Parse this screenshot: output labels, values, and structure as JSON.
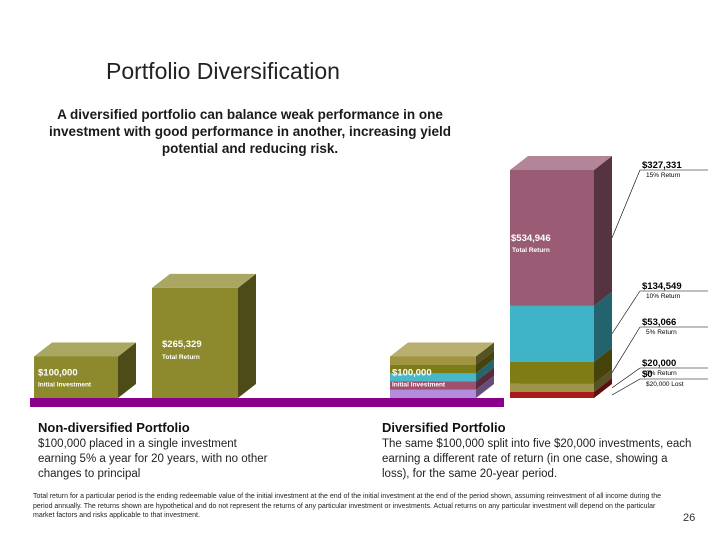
{
  "slide": {
    "title": "Portfolio Diversification",
    "subtitle": "A diversified portfolio can balance weak performance in one investment with good performance in another, increasing yield potential and reducing risk.",
    "page_number": "26",
    "footnote": "Total return for a particular period is the ending redeemable value of the initial investment at the end of the initial investment at the end of the period shown, assuming reinvestment of all income during the period annually. The returns shown are hypothetical and do not represent the returns of any particular investment or investments. Actual returns on any particular investment will depend on the particular market factors and risks applicable to that investment."
  },
  "left_pane": {
    "heading": "Non-diversified Portfolio",
    "body": "$100,000 placed in a single investment earning 5% a year for 20 years, with no other changes to principal"
  },
  "right_pane": {
    "heading": "Diversified Portfolio",
    "body": "The same $100,000 split into five $20,000 investments, each earning a different rate of return (in one case, showing a loss), for the same 20-year period."
  },
  "colors": {
    "olive": "#8c8a2c",
    "base_bar": "#8b008b",
    "segment_15": "#9a5c75",
    "segment_10": "#3fb4c8",
    "segment_5": "#807c14",
    "segment_0": "#9e9448",
    "segment_loss": "#aa1a1a",
    "initial_mix": [
      "#b48cdc",
      "#a0506e",
      "#46b8c8",
      "#7e7c16",
      "#a09440"
    ]
  },
  "chart_data": {
    "type": "bar",
    "stacked_3d": true,
    "bars": [
      {
        "label": "$100,000",
        "sublabel": "Initial Investment",
        "value": 100000,
        "portfolio": "non-diversified"
      },
      {
        "label": "$265,329",
        "sublabel": "Total Return",
        "value": 265329,
        "portfolio": "non-diversified"
      },
      {
        "label": "$100,000",
        "sublabel": "Initial Investment",
        "value": 100000,
        "portfolio": "diversified",
        "segments": [
          20000,
          20000,
          20000,
          20000,
          20000
        ]
      },
      {
        "label": "$534,946",
        "sublabel": "Total Return",
        "value": 534946,
        "portfolio": "diversified",
        "segments": [
          {
            "name": "$0",
            "note": "$20,000 Lost",
            "value": 0,
            "color_key": "segment_loss"
          },
          {
            "name": "$20,000",
            "note": "0% Return",
            "value": 20000,
            "color_key": "segment_0"
          },
          {
            "name": "$53,066",
            "note": "5% Return",
            "value": 53066,
            "color_key": "segment_5"
          },
          {
            "name": "$134,549",
            "note": "10% Return",
            "value": 134549,
            "color_key": "segment_10"
          },
          {
            "name": "$327,331",
            "note": "15% Return",
            "value": 327331,
            "color_key": "segment_15"
          }
        ]
      }
    ]
  }
}
